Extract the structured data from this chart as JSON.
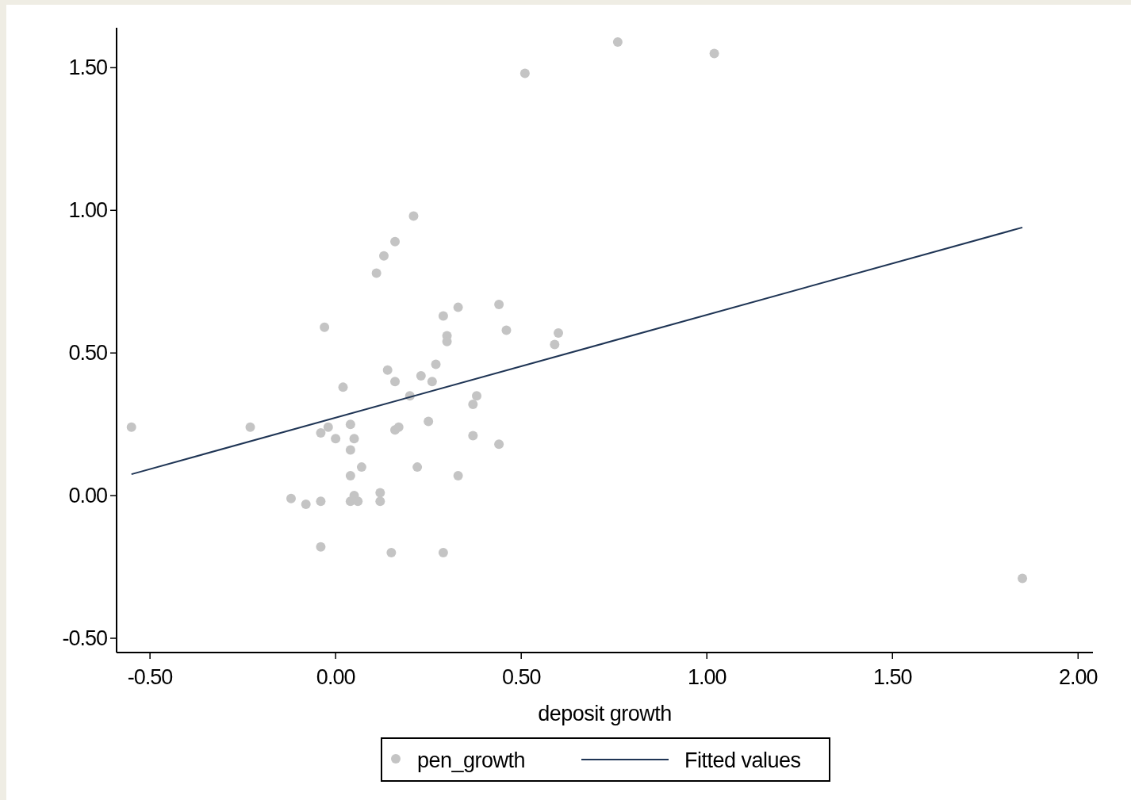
{
  "chart_data": {
    "type": "scatter",
    "xlabel": "deposit growth",
    "xlim": [
      -0.59,
      2.04
    ],
    "ylim": [
      -0.55,
      1.64
    ],
    "xticks": [
      {
        "value": -0.5,
        "label": "-0.50"
      },
      {
        "value": 0,
        "label": "0.00"
      },
      {
        "value": 0.5,
        "label": "0.50"
      },
      {
        "value": 1,
        "label": "1.00"
      },
      {
        "value": 1.5,
        "label": "1.50"
      },
      {
        "value": 2,
        "label": "2.00"
      }
    ],
    "yticks": [
      {
        "value": -0.5,
        "label": "-0.50"
      },
      {
        "value": 0,
        "label": "0.00"
      },
      {
        "value": 0.5,
        "label": "0.50"
      },
      {
        "value": 1,
        "label": "1.00"
      },
      {
        "value": 1.5,
        "label": "1.50"
      }
    ],
    "grid": false,
    "legend": "bottom",
    "marker": "circle",
    "series": [
      {
        "name": "pen_growth",
        "color": "#c4c4c4",
        "x": [
          -0.55,
          -0.23,
          -0.12,
          -0.08,
          -0.04,
          -0.04,
          -0.03,
          -0.04,
          -0.02,
          0.0,
          0.02,
          0.04,
          0.04,
          0.04,
          0.05,
          0.04,
          0.05,
          0.06,
          0.07,
          0.11,
          0.12,
          0.12,
          0.13,
          0.14,
          0.15,
          0.16,
          0.16,
          0.16,
          0.17,
          0.2,
          0.21,
          0.22,
          0.23,
          0.25,
          0.26,
          0.27,
          0.29,
          0.29,
          0.3,
          0.3,
          0.33,
          0.33,
          0.37,
          0.37,
          0.38,
          0.44,
          0.44,
          0.46,
          0.51,
          0.59,
          0.6,
          0.76,
          1.02,
          1.85
        ],
        "values": [
          0.24,
          0.24,
          -0.01,
          -0.03,
          -0.02,
          -0.18,
          0.59,
          0.22,
          0.24,
          0.2,
          0.38,
          0.07,
          0.16,
          0.25,
          0.2,
          -0.02,
          0.0,
          -0.02,
          0.1,
          0.78,
          0.01,
          -0.02,
          0.84,
          0.44,
          -0.2,
          0.89,
          0.4,
          0.23,
          0.24,
          0.35,
          0.98,
          0.1,
          0.42,
          0.26,
          0.4,
          0.46,
          0.63,
          -0.2,
          0.56,
          0.54,
          0.66,
          0.07,
          0.21,
          0.32,
          0.35,
          0.67,
          0.18,
          0.58,
          1.48,
          0.53,
          0.57,
          1.59,
          1.55,
          -0.29
        ]
      },
      {
        "name": "Fitted values",
        "type": "line",
        "color": "#1f3555",
        "marker": "none",
        "x": [
          -0.55,
          1.85
        ],
        "values": [
          0.075,
          0.94
        ]
      }
    ]
  }
}
